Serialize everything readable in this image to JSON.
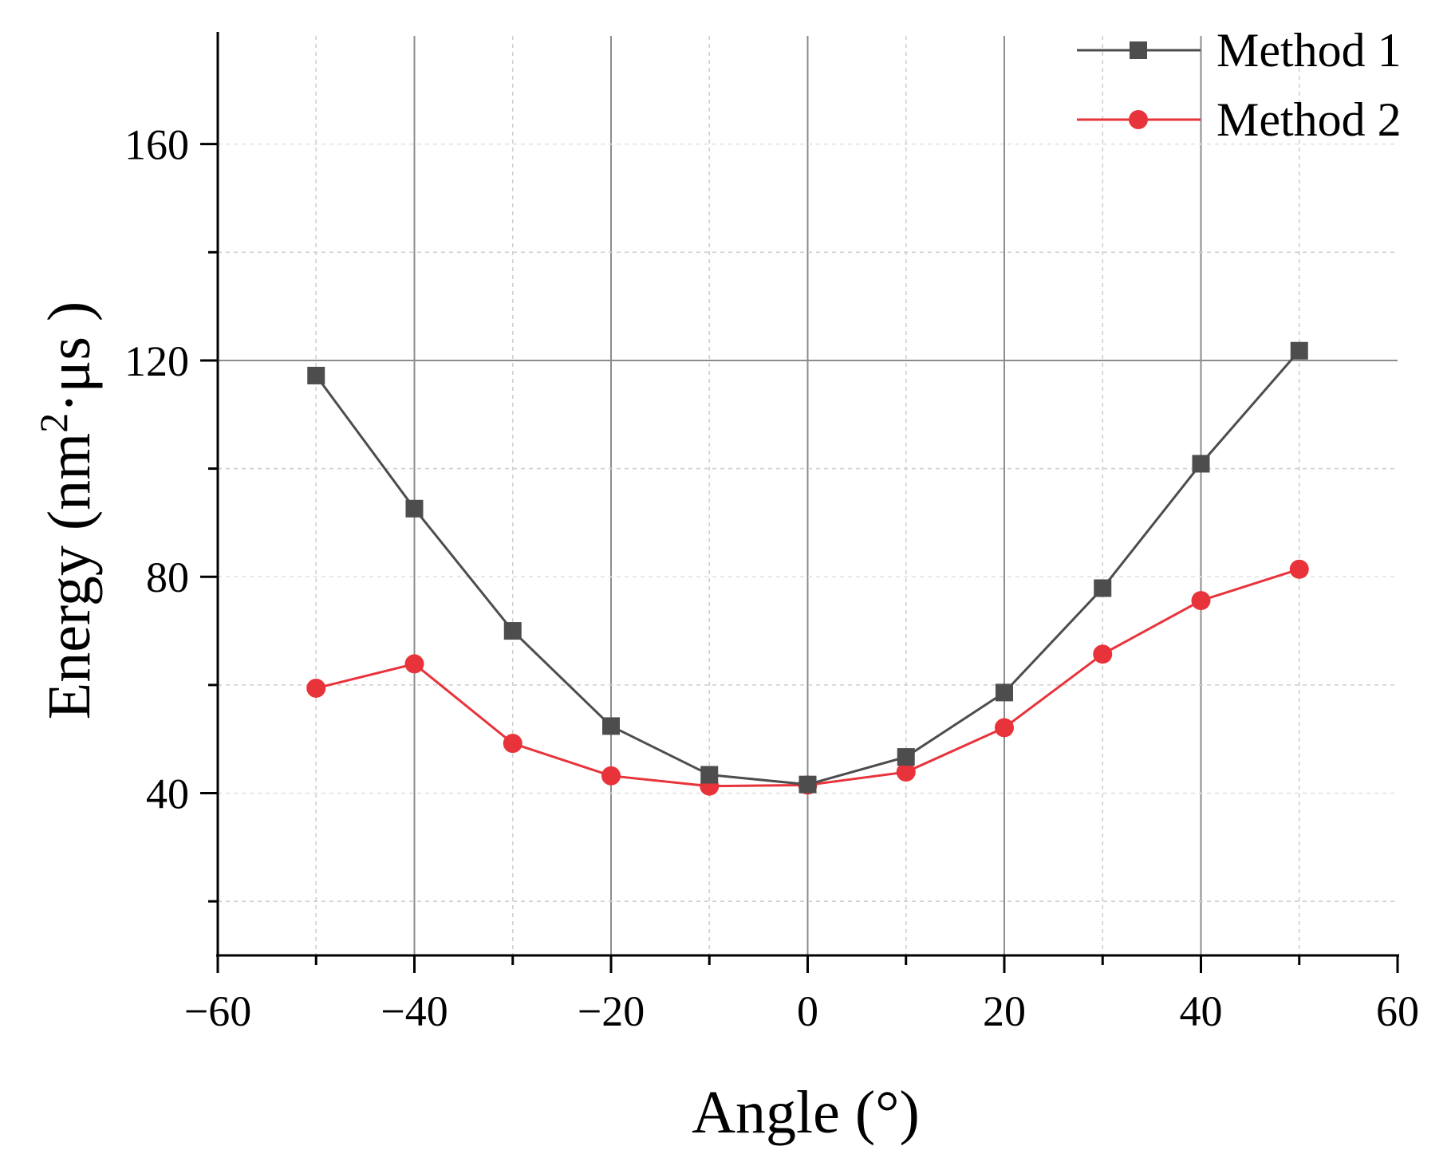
{
  "chart_data": {
    "type": "line",
    "title": "",
    "xlabel": "Angle (°)",
    "ylabel": {
      "main": "Energy (nm",
      "sup": "2",
      "rest": "·μs )"
    },
    "xlim": [
      -60,
      60
    ],
    "ylim": [
      10,
      180
    ],
    "xticks": [
      -60,
      -40,
      -20,
      0,
      20,
      40,
      60
    ],
    "xtick_labels": [
      "−60",
      "−40",
      "−20",
      "0",
      "20",
      "40",
      "60"
    ],
    "yticks": [
      40,
      80,
      120,
      160
    ],
    "ytick_labels": [
      "40",
      "80",
      "120",
      "160"
    ],
    "x": [
      -50,
      -40,
      -30,
      -20,
      -10,
      0,
      10,
      20,
      30,
      40,
      50
    ],
    "series": [
      {
        "name": "Method 1",
        "color": "#4d4d4d",
        "marker": "square",
        "values": [
          117.2,
          92.6,
          70.0,
          52.4,
          43.4,
          41.6,
          46.7,
          58.6,
          77.9,
          100.9,
          121.8
        ]
      },
      {
        "name": "Method 2",
        "color": "#e8333a",
        "marker": "circle",
        "values": [
          59.4,
          63.9,
          49.2,
          43.2,
          41.3,
          41.5,
          43.9,
          52.1,
          65.7,
          75.6,
          81.4
        ]
      }
    ],
    "grid": true,
    "legend_position": "top-right"
  }
}
